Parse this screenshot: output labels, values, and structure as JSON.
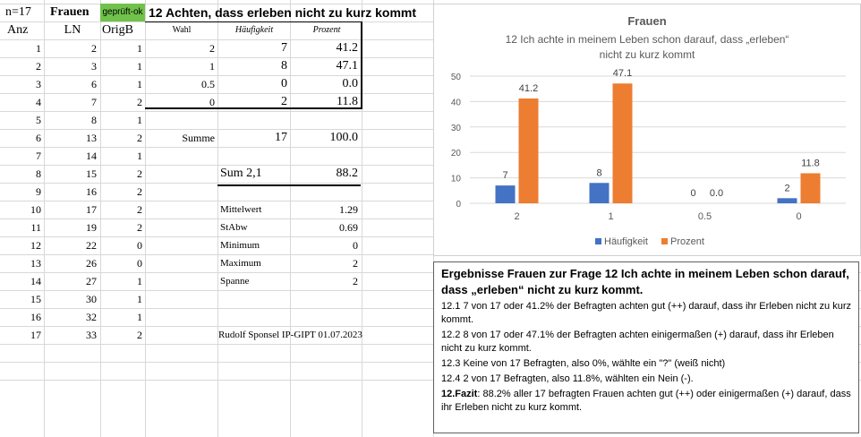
{
  "sheet": {
    "n_label": "n=17",
    "group_label": "Frauen",
    "badge": "geprüft-ok",
    "heading": "12 Achten, dass erleben nicht zu kurz kommt",
    "col_headers": [
      "Anz",
      "LN",
      "OrigB"
    ],
    "rows": [
      {
        "anz": "1",
        "ln": "2",
        "orig": "1"
      },
      {
        "anz": "2",
        "ln": "3",
        "orig": "1"
      },
      {
        "anz": "3",
        "ln": "6",
        "orig": "1"
      },
      {
        "anz": "4",
        "ln": "7",
        "orig": "2"
      },
      {
        "anz": "5",
        "ln": "8",
        "orig": "1"
      },
      {
        "anz": "6",
        "ln": "13",
        "orig": "2"
      },
      {
        "anz": "7",
        "ln": "14",
        "orig": "1"
      },
      {
        "anz": "8",
        "ln": "15",
        "orig": "2"
      },
      {
        "anz": "9",
        "ln": "16",
        "orig": "2"
      },
      {
        "anz": "10",
        "ln": "17",
        "orig": "2"
      },
      {
        "anz": "11",
        "ln": "19",
        "orig": "2"
      },
      {
        "anz": "12",
        "ln": "22",
        "orig": "0"
      },
      {
        "anz": "13",
        "ln": "26",
        "orig": "0"
      },
      {
        "anz": "14",
        "ln": "27",
        "orig": "1"
      },
      {
        "anz": "15",
        "ln": "30",
        "orig": "1"
      },
      {
        "anz": "16",
        "ln": "32",
        "orig": "1"
      },
      {
        "anz": "17",
        "ln": "33",
        "orig": "2"
      }
    ],
    "freq": {
      "headers": [
        "Wahl",
        "Häufigkeit",
        "Prozent"
      ],
      "rows": [
        {
          "wahl": "2",
          "haeuf": "7",
          "proz": "41.2"
        },
        {
          "wahl": "1",
          "haeuf": "8",
          "proz": "47.1"
        },
        {
          "wahl": "0.5",
          "haeuf": "0",
          "proz": "0.0"
        },
        {
          "wahl": "0",
          "haeuf": "2",
          "proz": "11.8"
        }
      ],
      "summe_label": "Summe",
      "summe_haeuf": "17",
      "summe_proz": "100.0",
      "sum21_label": "Sum 2,1",
      "sum21_value": "88.2"
    },
    "stats": [
      {
        "label": "Mittelwert",
        "value": "1.29"
      },
      {
        "label": "StAbw",
        "value": "0.69"
      },
      {
        "label": "Minimum",
        "value": "0"
      },
      {
        "label": "Maximum",
        "value": "2"
      },
      {
        "label": "Spanne",
        "value": "2"
      }
    ],
    "author": "Rudolf Sponsel IP-GIPT 01.07.2023"
  },
  "chart_data": {
    "type": "bar",
    "title": "Frauen",
    "subtitle_line1": "12 Ich achte in meinem Leben schon darauf,  dass „erleben“",
    "subtitle_line2": "nicht zu kurz kommt",
    "categories": [
      "2",
      "1",
      "0.5",
      "0"
    ],
    "series": [
      {
        "name": "Häufigkeit",
        "values": [
          7,
          8,
          0,
          2
        ],
        "labels": [
          "7",
          "8",
          "0",
          "2"
        ],
        "color": "#4472c4"
      },
      {
        "name": "Prozent",
        "values": [
          41.2,
          47.1,
          0.0,
          11.8
        ],
        "labels": [
          "41.2",
          "47.1",
          "0.0",
          "11.8"
        ],
        "color": "#ed7d31"
      }
    ],
    "y_ticks": [
      "0",
      "10",
      "20",
      "30",
      "40",
      "50"
    ],
    "ylim": [
      0,
      50
    ],
    "grid": true,
    "legend": "bottom"
  },
  "summary": {
    "title": "Ergebnisse Frauen zur Frage  12 Ich achte in meinem Leben schon darauf, dass „erleben“ nicht zu kurz kommt.",
    "lines": [
      "12.1   7 von 17 oder 41.2% der Befragten achten gut (++) darauf, dass ihr Erleben nicht zu kurz kommt.",
      "12.2   8 von 17 oder 47.1% der Befragten achten einigermaßen (+) darauf, dass ihr Erleben nicht zu kurz kommt.",
      "12.3  Keine von 17 Befragten, also 0%, wählte ein \"?\" (weiß nicht)",
      "12.4  2 von 17 Befragten, also 11.8%, wählten ein Nein (-)."
    ],
    "fazit_label": "12.Fazit",
    "fazit_text": ": 88.2%  aller 17 befragten Frauen achten gut (++) oder einigermaßen (+) darauf, dass ihr Erleben nicht zu kurz kommt."
  }
}
